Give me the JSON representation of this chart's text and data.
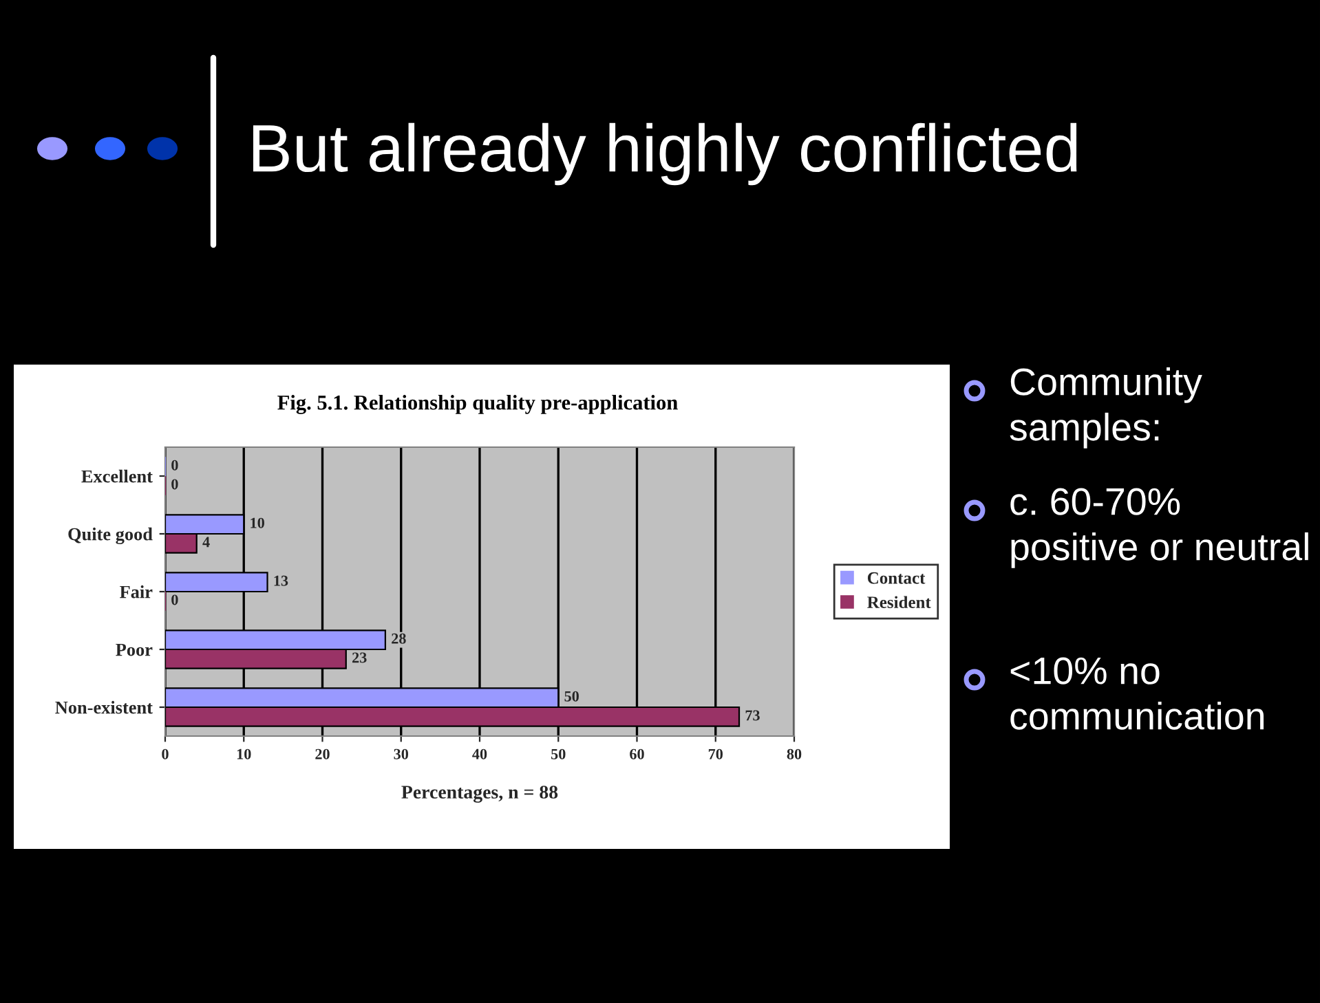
{
  "chart_data": {
    "type": "bar",
    "orientation": "horizontal",
    "title": "But already highly conflicted",
    "subtitle": "Fig. 5.1. Relationship quality pre-application",
    "xlabel": "Percentages, n = 88",
    "categories": [
      "Excellent",
      "Quite good",
      "Fair",
      "Poor",
      "Non-existent"
    ],
    "series": [
      {
        "name": "Contact",
        "color": "#9999ff",
        "values": [
          0,
          10,
          13,
          28,
          50
        ]
      },
      {
        "name": "Resident",
        "color": "#993366",
        "values": [
          0,
          4,
          0,
          23,
          73
        ]
      }
    ],
    "xlim": [
      0,
      80
    ],
    "xticks": [
      0,
      10,
      20,
      30,
      40,
      50,
      60,
      70,
      80
    ],
    "grid": "x",
    "legend": "right",
    "data_labels": true,
    "annotations": [
      "Community samples:",
      "c. 60-70% positive or neutral",
      "<10% no communication"
    ]
  }
}
